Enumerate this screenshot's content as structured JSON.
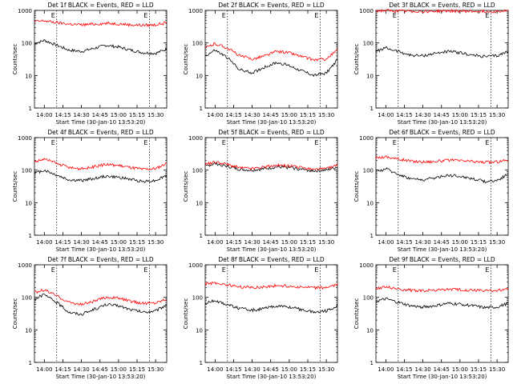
{
  "figure": {
    "background": "#ffffff"
  },
  "chart_data": [
    {
      "type": "line",
      "title": "Det 1f BLACK = Events, RED = LLD",
      "xlabel": "Start Time (30-Jan-10 13:53:20)",
      "ylabel": "Counts/sec",
      "yscale": "log",
      "ylim": [
        1,
        1000
      ],
      "xlim_min": [
        -8,
        99
      ],
      "xtick_labels": [
        "14:00",
        "14:15",
        "14:30",
        "14:45",
        "15:00",
        "15:15",
        "15:30"
      ],
      "ytick_labels": [
        "1",
        "10",
        "100",
        "1000"
      ],
      "markers": [
        {
          "label": "E",
          "x": 10
        },
        {
          "label": "E",
          "x": 85
        }
      ],
      "series": [
        {
          "color": "#000000",
          "x": [
            -8,
            0,
            10,
            20,
            30,
            40,
            50,
            60,
            70,
            80,
            90,
            99
          ],
          "y": [
            95,
            120,
            85,
            60,
            55,
            68,
            85,
            75,
            60,
            50,
            48,
            65
          ]
        },
        {
          "color": "#ff0000",
          "x": [
            -8,
            0,
            10,
            20,
            30,
            40,
            50,
            60,
            70,
            80,
            90,
            99
          ],
          "y": [
            450,
            480,
            420,
            380,
            360,
            380,
            400,
            390,
            360,
            350,
            360,
            420
          ]
        }
      ]
    },
    {
      "type": "line",
      "title": "Det 2f BLACK = Events, RED = LLD",
      "xlabel": "Start Time (30-Jan-10 13:53:20)",
      "ylabel": "Counts/sec",
      "yscale": "log",
      "ylim": [
        1,
        1000
      ],
      "xlim_min": [
        -8,
        99
      ],
      "xtick_labels": [
        "14:00",
        "14:15",
        "14:30",
        "14:45",
        "15:00",
        "15:15",
        "15:30"
      ],
      "ytick_labels": [
        "1",
        "10",
        "100",
        "1000"
      ],
      "markers": [
        {
          "label": "E",
          "x": 10
        },
        {
          "label": "E",
          "x": 85
        }
      ],
      "series": [
        {
          "color": "#000000",
          "x": [
            -8,
            0,
            10,
            20,
            30,
            40,
            50,
            60,
            70,
            80,
            90,
            99
          ],
          "y": [
            40,
            60,
            35,
            15,
            12,
            18,
            25,
            20,
            14,
            10,
            12,
            30
          ]
        },
        {
          "color": "#ff0000",
          "x": [
            -8,
            0,
            10,
            20,
            30,
            40,
            50,
            60,
            70,
            80,
            90,
            99
          ],
          "y": [
            70,
            95,
            70,
            40,
            32,
            40,
            55,
            50,
            38,
            30,
            32,
            60
          ]
        }
      ]
    },
    {
      "type": "line",
      "title": "Det 3f BLACK = Events, RED = LLD",
      "xlabel": "Start Time (30-Jan-10 13:53:20)",
      "ylabel": "Counts/sec",
      "yscale": "log",
      "ylim": [
        1,
        1000
      ],
      "xlim_min": [
        -8,
        99
      ],
      "xtick_labels": [
        "14:00",
        "14:15",
        "14:30",
        "14:45",
        "15:00",
        "15:15",
        "15:30"
      ],
      "ytick_labels": [
        "1",
        "10",
        "100",
        "1000"
      ],
      "markers": [
        {
          "label": "E",
          "x": 10
        },
        {
          "label": "E",
          "x": 85
        }
      ],
      "series": [
        {
          "color": "#000000",
          "x": [
            -8,
            0,
            10,
            20,
            30,
            40,
            50,
            60,
            70,
            80,
            90,
            99
          ],
          "y": [
            55,
            70,
            55,
            42,
            40,
            48,
            55,
            50,
            42,
            38,
            40,
            55
          ]
        },
        {
          "color": "#ff0000",
          "x": [
            -8,
            0,
            10,
            20,
            30,
            40,
            50,
            60,
            70,
            80,
            90,
            99
          ],
          "y": [
            960,
            980,
            950,
            940,
            930,
            945,
            960,
            950,
            935,
            925,
            930,
            960
          ]
        }
      ]
    },
    {
      "type": "line",
      "title": "Det 4f BLACK = Events, RED = LLD",
      "xlabel": "Start Time (30-Jan-10 13:53:20)",
      "ylabel": "Counts/sec",
      "yscale": "log",
      "ylim": [
        1,
        1000
      ],
      "xlim_min": [
        -8,
        99
      ],
      "xtick_labels": [
        "14:00",
        "14:15",
        "14:30",
        "14:45",
        "15:00",
        "15:15",
        "15:30"
      ],
      "ytick_labels": [
        "1",
        "10",
        "100",
        "1000"
      ],
      "markers": [
        {
          "label": "E",
          "x": 10
        },
        {
          "label": "E",
          "x": 85
        }
      ],
      "series": [
        {
          "color": "#000000",
          "x": [
            -8,
            0,
            10,
            20,
            30,
            40,
            50,
            60,
            70,
            80,
            90,
            99
          ],
          "y": [
            80,
            100,
            70,
            50,
            48,
            55,
            65,
            60,
            52,
            45,
            48,
            70
          ]
        },
        {
          "color": "#ff0000",
          "x": [
            -8,
            0,
            10,
            20,
            30,
            40,
            50,
            60,
            70,
            80,
            90,
            99
          ],
          "y": [
            180,
            220,
            160,
            120,
            110,
            125,
            150,
            140,
            120,
            105,
            110,
            160
          ]
        }
      ]
    },
    {
      "type": "line",
      "title": "Det 5f BLACK = Events, RED = LLD",
      "xlabel": "Start Time (30-Jan-10 13:53:20)",
      "ylabel": "Counts/sec",
      "yscale": "log",
      "ylim": [
        1,
        1000
      ],
      "xlim_min": [
        -8,
        99
      ],
      "xtick_labels": [
        "14:00",
        "14:15",
        "14:30",
        "14:45",
        "15:00",
        "15:15",
        "15:30"
      ],
      "ytick_labels": [
        "1",
        "10",
        "100",
        "1000"
      ],
      "markers": [
        {
          "label": "E",
          "x": 10
        },
        {
          "label": "E",
          "x": 85
        }
      ],
      "series": [
        {
          "color": "#000000",
          "x": [
            -8,
            0,
            10,
            20,
            30,
            40,
            50,
            60,
            70,
            80,
            90,
            99
          ],
          "y": [
            130,
            160,
            130,
            105,
            100,
            110,
            125,
            120,
            105,
            95,
            100,
            125
          ]
        },
        {
          "color": "#ff0000",
          "x": [
            -8,
            0,
            10,
            20,
            30,
            40,
            50,
            60,
            70,
            80,
            90,
            99
          ],
          "y": [
            150,
            180,
            150,
            118,
            112,
            125,
            140,
            135,
            118,
            105,
            110,
            140
          ]
        }
      ]
    },
    {
      "type": "line",
      "title": "Det 6f BLACK = Events, RED = LLD",
      "xlabel": "Start Time (30-Jan-10 13:53:20)",
      "ylabel": "Counts/sec",
      "yscale": "log",
      "ylim": [
        1,
        1000
      ],
      "xlim_min": [
        -8,
        99
      ],
      "xtick_labels": [
        "14:00",
        "14:15",
        "14:30",
        "14:45",
        "15:00",
        "15:15",
        "15:30"
      ],
      "ytick_labels": [
        "1",
        "10",
        "100",
        "1000"
      ],
      "markers": [
        {
          "label": "E",
          "x": 10
        },
        {
          "label": "E",
          "x": 85
        }
      ],
      "series": [
        {
          "color": "#000000",
          "x": [
            -8,
            0,
            10,
            20,
            30,
            40,
            50,
            60,
            70,
            80,
            90,
            99
          ],
          "y": [
            90,
            110,
            75,
            55,
            50,
            58,
            70,
            65,
            55,
            45,
            48,
            75
          ]
        },
        {
          "color": "#ff0000",
          "x": [
            -8,
            0,
            10,
            20,
            30,
            40,
            50,
            60,
            70,
            80,
            90,
            99
          ],
          "y": [
            240,
            260,
            220,
            190,
            180,
            185,
            200,
            195,
            185,
            175,
            178,
            210
          ]
        }
      ]
    },
    {
      "type": "line",
      "title": "Det 7f BLACK = Events, RED = LLD",
      "xlabel": "Start Time (30-Jan-10 13:53:20)",
      "ylabel": "Counts/sec",
      "yscale": "log",
      "ylim": [
        1,
        1000
      ],
      "xlim_min": [
        -8,
        99
      ],
      "xtick_labels": [
        "14:00",
        "14:15",
        "14:30",
        "14:45",
        "15:00",
        "15:15",
        "15:30"
      ],
      "ytick_labels": [
        "1",
        "10",
        "100",
        "1000"
      ],
      "markers": [
        {
          "label": "E",
          "x": 10
        },
        {
          "label": "E",
          "x": 85
        }
      ],
      "series": [
        {
          "color": "#000000",
          "x": [
            -8,
            0,
            10,
            20,
            30,
            40,
            50,
            60,
            70,
            80,
            90,
            99
          ],
          "y": [
            90,
            120,
            70,
            35,
            30,
            42,
            60,
            55,
            42,
            35,
            38,
            60
          ]
        },
        {
          "color": "#ff0000",
          "x": [
            -8,
            0,
            10,
            20,
            30,
            40,
            50,
            60,
            70,
            80,
            90,
            99
          ],
          "y": [
            140,
            170,
            110,
            70,
            60,
            75,
            100,
            95,
            75,
            65,
            68,
            90
          ]
        }
      ]
    },
    {
      "type": "line",
      "title": "Det 8f BLACK = Events, RED = LLD",
      "xlabel": "Start Time (30-Jan-10 13:53:20)",
      "ylabel": "Counts/sec",
      "yscale": "log",
      "ylim": [
        1,
        1000
      ],
      "xlim_min": [
        -8,
        99
      ],
      "xtick_labels": [
        "14:00",
        "14:15",
        "14:30",
        "14:45",
        "15:00",
        "15:15",
        "15:30"
      ],
      "ytick_labels": [
        "1",
        "10",
        "100",
        "1000"
      ],
      "markers": [
        {
          "label": "E",
          "x": 10
        },
        {
          "label": "E",
          "x": 85
        }
      ],
      "series": [
        {
          "color": "#000000",
          "x": [
            -8,
            0,
            10,
            20,
            30,
            40,
            50,
            60,
            70,
            80,
            90,
            99
          ],
          "y": [
            65,
            80,
            60,
            45,
            40,
            45,
            55,
            50,
            42,
            35,
            38,
            55
          ]
        },
        {
          "color": "#ff0000",
          "x": [
            -8,
            0,
            10,
            20,
            30,
            40,
            50,
            60,
            70,
            80,
            90,
            99
          ],
          "y": [
            260,
            280,
            240,
            210,
            200,
            210,
            230,
            220,
            205,
            195,
            200,
            240
          ]
        }
      ]
    },
    {
      "type": "line",
      "title": "Det 9f BLACK = Events, RED = LLD",
      "xlabel": "Start Time (30-Jan-10 13:53:20)",
      "ylabel": "Counts/sec",
      "yscale": "log",
      "ylim": [
        1,
        1000
      ],
      "xlim_min": [
        -8,
        99
      ],
      "xtick_labels": [
        "14:00",
        "14:15",
        "14:30",
        "14:45",
        "15:00",
        "15:15",
        "15:30"
      ],
      "ytick_labels": [
        "1",
        "10",
        "100",
        "1000"
      ],
      "markers": [
        {
          "label": "E",
          "x": 10
        },
        {
          "label": "E",
          "x": 85
        }
      ],
      "series": [
        {
          "color": "#000000",
          "x": [
            -8,
            0,
            10,
            20,
            30,
            40,
            50,
            60,
            70,
            80,
            90,
            99
          ],
          "y": [
            75,
            90,
            70,
            55,
            50,
            55,
            65,
            62,
            55,
            48,
            50,
            65
          ]
        },
        {
          "color": "#ff0000",
          "x": [
            -8,
            0,
            10,
            20,
            30,
            40,
            50,
            60,
            70,
            80,
            90,
            99
          ],
          "y": [
            190,
            210,
            180,
            165,
            160,
            165,
            175,
            170,
            165,
            160,
            162,
            180
          ]
        }
      ]
    }
  ]
}
